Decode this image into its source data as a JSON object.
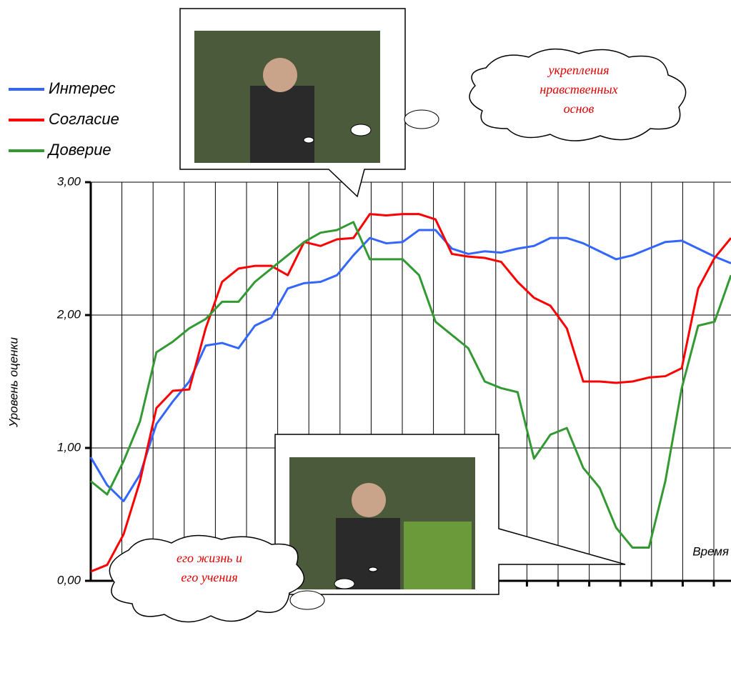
{
  "chart_data": {
    "type": "line",
    "y_label": "Уровень оценки",
    "x_label": "Время",
    "ylim": [
      0,
      3
    ],
    "yticks": [
      {
        "value": 0,
        "label": "0,00"
      },
      {
        "value": 1,
        "label": "1,00"
      },
      {
        "value": 2,
        "label": "2,00"
      },
      {
        "value": 3,
        "label": "3,00"
      }
    ],
    "grid": true,
    "legend": "top-left",
    "series": [
      {
        "name": "Интерес",
        "color": "#3366ff",
        "values": [
          0.93,
          0.72,
          0.6,
          0.8,
          1.18,
          1.35,
          1.5,
          1.77,
          1.79,
          1.75,
          1.92,
          1.98,
          2.2,
          2.24,
          2.25,
          2.3,
          2.45,
          2.58,
          2.54,
          2.55,
          2.64,
          2.64,
          2.5,
          2.46,
          2.48,
          2.47,
          2.5,
          2.52,
          2.58,
          2.58,
          2.54,
          2.48,
          2.42,
          2.45,
          2.5,
          2.55,
          2.56,
          2.5,
          2.44,
          2.39
        ]
      },
      {
        "name": "Согласие",
        "color": "#ff0000",
        "values": [
          0.07,
          0.12,
          0.35,
          0.75,
          1.3,
          1.43,
          1.44,
          1.9,
          2.25,
          2.35,
          2.37,
          2.37,
          2.3,
          2.55,
          2.52,
          2.57,
          2.58,
          2.76,
          2.75,
          2.76,
          2.76,
          2.72,
          2.46,
          2.44,
          2.43,
          2.4,
          2.25,
          2.13,
          2.07,
          1.9,
          1.5,
          1.5,
          1.49,
          1.5,
          1.53,
          1.54,
          1.6,
          2.2,
          2.43,
          2.58
        ]
      },
      {
        "name": "Доверие",
        "color": "#339933",
        "values": [
          0.75,
          0.65,
          0.9,
          1.2,
          1.72,
          1.8,
          1.9,
          1.97,
          2.1,
          2.1,
          2.25,
          2.35,
          2.45,
          2.55,
          2.62,
          2.64,
          2.7,
          2.42,
          2.42,
          2.42,
          2.3,
          1.95,
          1.85,
          1.75,
          1.5,
          1.45,
          1.42,
          0.92,
          1.1,
          1.15,
          0.85,
          0.7,
          0.4,
          0.25,
          0.25,
          0.75,
          1.45,
          1.92,
          1.95,
          2.3
        ]
      }
    ],
    "annotations": [
      {
        "lines": [
          "укрепления",
          "нравственных",
          "основ"
        ]
      },
      {
        "lines": [
          "его жизнь и",
          "его учения"
        ]
      }
    ]
  }
}
